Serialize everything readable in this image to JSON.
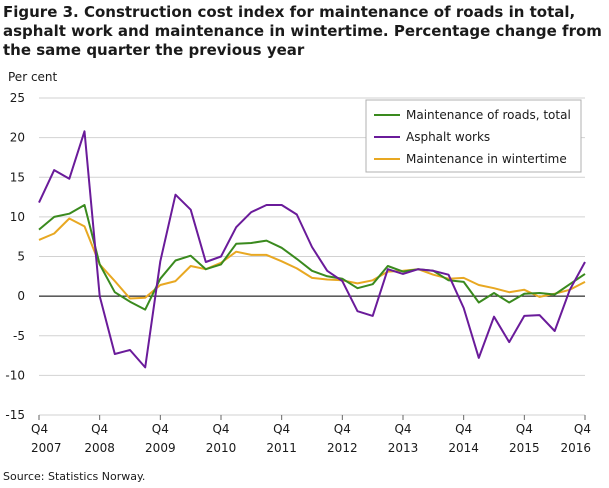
{
  "figure_title": "Figure 3. Construction cost index for maintenance of roads in total, asphalt work and maintenance in wintertime. Percentage change from the same quarter the previous year",
  "source": "Source: Statistics Norway.",
  "chart_data": {
    "type": "line",
    "title": "Figure 3. Construction cost index for maintenance of roads in total, asphalt work and maintenance in wintertime. Percentage change from the same quarter the previous year",
    "ylabel": "Per cent",
    "xlabel": "",
    "ylim": [
      -15,
      25
    ],
    "yticks": [
      25,
      20,
      15,
      10,
      5,
      0,
      -5,
      -10,
      -15
    ],
    "grid": "horizontal",
    "legend_position": "top-right",
    "x_tick_labels": [
      {
        "quarter": "Q4",
        "year": "2007"
      },
      {
        "quarter": "Q4",
        "year": "2008"
      },
      {
        "quarter": "Q4",
        "year": "2009"
      },
      {
        "quarter": "Q4",
        "year": "2010"
      },
      {
        "quarter": "Q4",
        "year": "2011"
      },
      {
        "quarter": "Q4",
        "year": "2012"
      },
      {
        "quarter": "Q4",
        "year": "2013"
      },
      {
        "quarter": "Q4",
        "year": "2014"
      },
      {
        "quarter": "Q4",
        "year": "2015"
      },
      {
        "quarter": "Q4",
        "year": "2016"
      }
    ],
    "x": [
      "2007Q4",
      "2008Q1",
      "2008Q2",
      "2008Q3",
      "2008Q4",
      "2009Q1",
      "2009Q2",
      "2009Q3",
      "2009Q4",
      "2010Q1",
      "2010Q2",
      "2010Q3",
      "2010Q4",
      "2011Q1",
      "2011Q2",
      "2011Q3",
      "2011Q4",
      "2012Q1",
      "2012Q2",
      "2012Q3",
      "2012Q4",
      "2013Q1",
      "2013Q2",
      "2013Q3",
      "2013Q4",
      "2014Q1",
      "2014Q2",
      "2014Q3",
      "2014Q4",
      "2015Q1",
      "2015Q2",
      "2015Q3",
      "2015Q4",
      "2016Q1",
      "2016Q2",
      "2016Q3",
      "2016Q4"
    ],
    "series": [
      {
        "name": "Maintenance of roads, total",
        "color": "#3a8a1e",
        "values": [
          8.4,
          10.0,
          10.4,
          11.5,
          4.0,
          0.5,
          -0.7,
          -1.7,
          2.2,
          4.5,
          5.1,
          3.4,
          4.0,
          6.6,
          6.7,
          7.0,
          6.1,
          4.7,
          3.2,
          2.5,
          2.2,
          1.0,
          1.5,
          3.8,
          3.1,
          3.4,
          3.2,
          2.0,
          1.8,
          -0.8,
          0.4,
          -0.8,
          0.3,
          0.4,
          0.2,
          1.5,
          2.8
        ]
      },
      {
        "name": "Asphalt works",
        "color": "#6a1b9a",
        "values": [
          11.8,
          15.9,
          14.8,
          20.8,
          0.0,
          -7.3,
          -6.8,
          -9.0,
          4.4,
          12.8,
          10.9,
          4.3,
          5.0,
          8.7,
          10.6,
          11.5,
          11.5,
          10.3,
          6.2,
          3.2,
          1.9,
          -1.9,
          -2.5,
          3.4,
          2.8,
          3.4,
          3.2,
          2.7,
          -1.5,
          -7.8,
          -2.6,
          -5.8,
          -2.5,
          -2.4,
          -4.4,
          0.8,
          4.3
        ]
      },
      {
        "name": "Maintenance in wintertime",
        "color": "#e8a822",
        "values": [
          7.1,
          7.9,
          9.8,
          8.8,
          4.0,
          1.9,
          -0.3,
          -0.2,
          1.4,
          1.9,
          3.8,
          3.4,
          4.2,
          5.6,
          5.2,
          5.2,
          4.4,
          3.5,
          2.3,
          2.1,
          2.0,
          1.6,
          2.0,
          3.1,
          3.2,
          3.4,
          2.7,
          2.2,
          2.3,
          1.4,
          1.0,
          0.5,
          0.8,
          -0.1,
          0.3,
          0.8,
          1.8
        ]
      }
    ]
  }
}
